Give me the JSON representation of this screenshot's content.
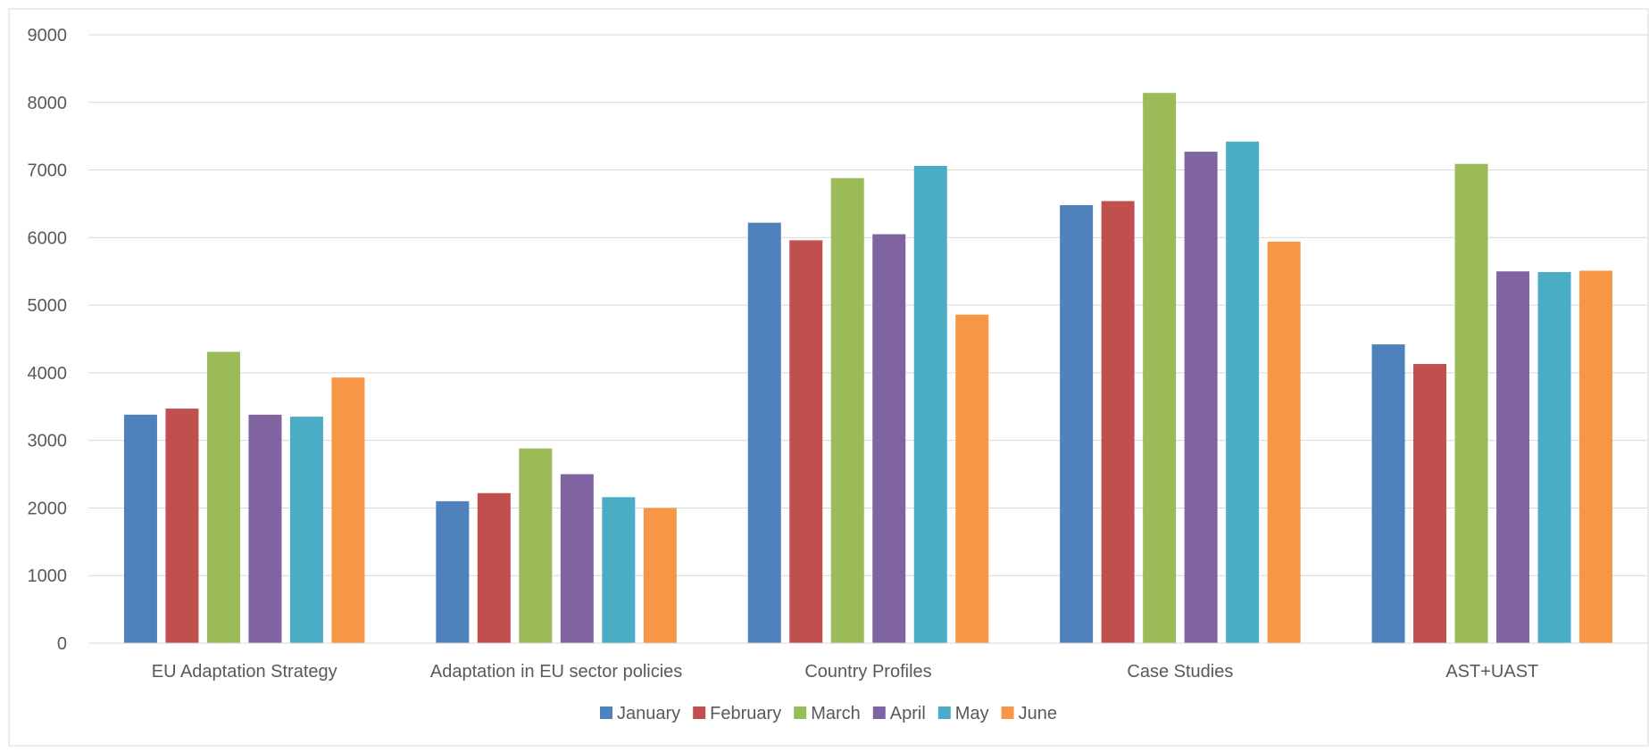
{
  "chart_data": {
    "type": "bar",
    "title": "",
    "xlabel": "",
    "ylabel": "",
    "ylim": [
      0,
      9000
    ],
    "yticks": [
      0,
      1000,
      2000,
      3000,
      4000,
      5000,
      6000,
      7000,
      8000,
      9000
    ],
    "grid": true,
    "legend_position": "bottom",
    "categories": [
      "EU  Adaptation Strategy",
      "Adaptation in EU sector policies",
      "Country Profiles",
      "Case Studies",
      "AST+UAST"
    ],
    "series": [
      {
        "name": "January",
        "color": "#4f81bd",
        "values": [
          3380,
          2100,
          6220,
          6480,
          4420
        ]
      },
      {
        "name": "February",
        "color": "#c0504d",
        "values": [
          3470,
          2220,
          5960,
          6540,
          4130
        ]
      },
      {
        "name": "March",
        "color": "#9bbb59",
        "values": [
          4310,
          2880,
          6880,
          8140,
          7090
        ]
      },
      {
        "name": "April",
        "color": "#8064a2",
        "values": [
          3380,
          2500,
          6050,
          7270,
          5500
        ]
      },
      {
        "name": "May",
        "color": "#4bacc6",
        "values": [
          3350,
          2160,
          7060,
          7420,
          5490
        ]
      },
      {
        "name": "June",
        "color": "#f79646",
        "values": [
          3930,
          2000,
          4860,
          5940,
          5510
        ]
      }
    ]
  }
}
